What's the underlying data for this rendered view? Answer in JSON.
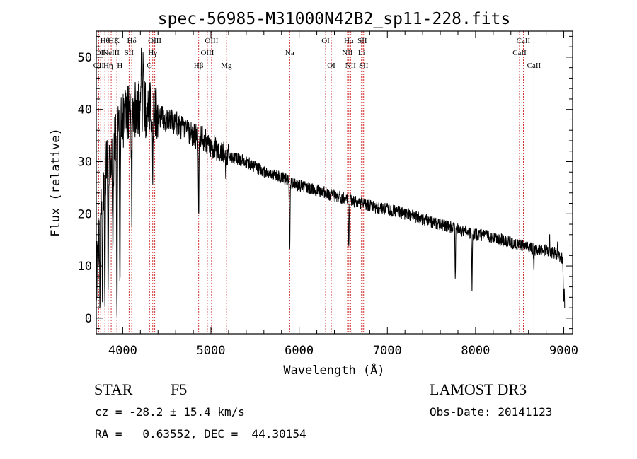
{
  "chart_data": {
    "type": "line",
    "title": "spec-56985-M31000N42B2_sp11-228.fits",
    "xlabel": "Wavelength (Å)",
    "ylabel": "Flux (relative)",
    "xlim": [
      3700,
      9100
    ],
    "ylim": [
      -3,
      55
    ],
    "xticks": [
      4000,
      5000,
      6000,
      7000,
      8000,
      9000
    ],
    "yticks": [
      0,
      10,
      20,
      30,
      40,
      50
    ],
    "continuum": [
      [
        3700,
        8
      ],
      [
        3750,
        22
      ],
      [
        3800,
        28
      ],
      [
        3900,
        33
      ],
      [
        4000,
        38
      ],
      [
        4100,
        40
      ],
      [
        4200,
        40
      ],
      [
        4300,
        40
      ],
      [
        4400,
        39
      ],
      [
        4500,
        38
      ],
      [
        4600,
        37.5
      ],
      [
        4700,
        36
      ],
      [
        4800,
        35
      ],
      [
        4900,
        34.5
      ],
      [
        5000,
        33
      ],
      [
        5100,
        32
      ],
      [
        5200,
        31
      ],
      [
        5300,
        30.5
      ],
      [
        5400,
        30
      ],
      [
        5500,
        29
      ],
      [
        5600,
        28
      ],
      [
        5700,
        27.5
      ],
      [
        5800,
        27
      ],
      [
        5900,
        26
      ],
      [
        6000,
        25.5
      ],
      [
        6100,
        25
      ],
      [
        6200,
        24.5
      ],
      [
        6300,
        24
      ],
      [
        6400,
        23.5
      ],
      [
        6500,
        23
      ],
      [
        6600,
        22.5
      ],
      [
        6700,
        22
      ],
      [
        6800,
        21.5
      ],
      [
        6900,
        21
      ],
      [
        7000,
        21
      ],
      [
        7100,
        20.5
      ],
      [
        7200,
        20
      ],
      [
        7300,
        19.5
      ],
      [
        7400,
        19
      ],
      [
        7500,
        18.5
      ],
      [
        7600,
        18
      ],
      [
        7700,
        17.5
      ],
      [
        7800,
        17
      ],
      [
        7900,
        16.5
      ],
      [
        8000,
        16
      ],
      [
        8100,
        15.8
      ],
      [
        8200,
        15.5
      ],
      [
        8300,
        15
      ],
      [
        8400,
        14.5
      ],
      [
        8500,
        14
      ],
      [
        8600,
        13.5
      ],
      [
        8700,
        13
      ],
      [
        8800,
        13
      ],
      [
        8900,
        12.5
      ],
      [
        9000,
        11
      ],
      [
        9010,
        2
      ]
    ],
    "absorption_features": [
      {
        "x": 3720,
        "depth": 6
      },
      {
        "x": 3740,
        "depth": 14
      },
      {
        "x": 3770,
        "depth": 18
      },
      {
        "x": 3798,
        "depth": 25
      },
      {
        "x": 3835,
        "depth": 26
      },
      {
        "x": 3889,
        "depth": 22
      },
      {
        "x": 3934,
        "depth": 34
      },
      {
        "x": 3968,
        "depth": 30
      },
      {
        "x": 4102,
        "depth": 18
      },
      {
        "x": 4340,
        "depth": 14
      },
      {
        "x": 4861,
        "depth": 16
      },
      {
        "x": 5170,
        "depth": 4
      },
      {
        "x": 5893,
        "depth": 14
      },
      {
        "x": 6563,
        "depth": 10
      },
      {
        "x": 7770,
        "depth": 9
      },
      {
        "x": 7960,
        "depth": 10
      },
      {
        "x": 8660,
        "depth": 4
      },
      {
        "x": 8998,
        "depth": 8
      }
    ],
    "emission_features": [
      {
        "x": 4212,
        "height": 9
      },
      {
        "x": 4232,
        "height": 12
      },
      {
        "x": 8838,
        "height": 3
      },
      {
        "x": 8930,
        "height": 2.5
      }
    ],
    "line_markers": [
      {
        "x": 3727,
        "label": "OII",
        "row": 3
      },
      {
        "x": 3750,
        "label": "OII",
        "row": 2
      },
      {
        "x": 3798,
        "label": "Hθ",
        "row": 1
      },
      {
        "x": 3835,
        "label": "Hη",
        "row": 3
      },
      {
        "x": 3869,
        "label": "NeIII",
        "row": 2
      },
      {
        "x": 3889,
        "label": "Hζ",
        "row": 1
      },
      {
        "x": 3934,
        "label": "K",
        "row": 1
      },
      {
        "x": 3968,
        "label": "H",
        "row": 3
      },
      {
        "x": 4072,
        "label": "SII",
        "row": 2
      },
      {
        "x": 4102,
        "label": "Hδ",
        "row": 1
      },
      {
        "x": 4304,
        "label": "G",
        "row": 3
      },
      {
        "x": 4340,
        "label": "Hγ",
        "row": 2
      },
      {
        "x": 4363,
        "label": "OIII",
        "row": 1
      },
      {
        "x": 4861,
        "label": "Hβ",
        "row": 3
      },
      {
        "x": 4959,
        "label": "OIII",
        "row": 2
      },
      {
        "x": 5007,
        "label": "OIII",
        "row": 1
      },
      {
        "x": 5175,
        "label": "Mg",
        "row": 3
      },
      {
        "x": 5893,
        "label": "Na",
        "row": 2
      },
      {
        "x": 6300,
        "label": "OI",
        "row": 1
      },
      {
        "x": 6364,
        "label": "OI",
        "row": 3
      },
      {
        "x": 6548,
        "label": "NII",
        "row": 2
      },
      {
        "x": 6563,
        "label": "Hα",
        "row": 1
      },
      {
        "x": 6583,
        "label": "NII",
        "row": 3
      },
      {
        "x": 6707,
        "label": "Li",
        "row": 2
      },
      {
        "x": 6716,
        "label": "SII",
        "row": 1
      },
      {
        "x": 6731,
        "label": "SII",
        "row": 3
      },
      {
        "x": 8498,
        "label": "CaII",
        "row": 2
      },
      {
        "x": 8542,
        "label": "CaII",
        "row": 1
      },
      {
        "x": 8662,
        "label": "CaII",
        "row": 3
      }
    ]
  },
  "info": {
    "object_class": "STAR",
    "subclass": "F5",
    "survey": "LAMOST DR3",
    "redshift": "cz = -28.2 ± 15.4 km/s",
    "obs_date": "Obs-Date: 20141123",
    "coords": "RA =   0.63552, DEC =  44.30154"
  }
}
